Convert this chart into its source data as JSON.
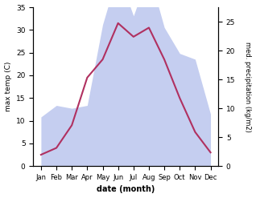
{
  "months": [
    "Jan",
    "Feb",
    "Mar",
    "Apr",
    "May",
    "Jun",
    "Jul",
    "Aug",
    "Sep",
    "Oct",
    "Nov",
    "Dec"
  ],
  "temp": [
    2.5,
    4.0,
    9.0,
    19.5,
    23.5,
    31.5,
    28.5,
    30.5,
    23.5,
    15.0,
    7.5,
    3.0
  ],
  "precip": [
    8.5,
    10.5,
    10.0,
    10.5,
    24.5,
    33.5,
    26.0,
    33.5,
    24.0,
    19.5,
    18.5,
    9.0
  ],
  "temp_color": "#b03060",
  "precip_fill_color": "#c5cef0",
  "ylabel_left": "max temp (C)",
  "ylabel_right": "med. precipitation (kg/m2)",
  "xlabel": "date (month)",
  "ylim_left": [
    0,
    35
  ],
  "ylim_right": [
    0,
    27.5
  ],
  "yticks_left": [
    0,
    5,
    10,
    15,
    20,
    25,
    30,
    35
  ],
  "yticks_right": [
    0,
    5,
    10,
    15,
    20,
    25
  ],
  "bg_color": "#ffffff"
}
